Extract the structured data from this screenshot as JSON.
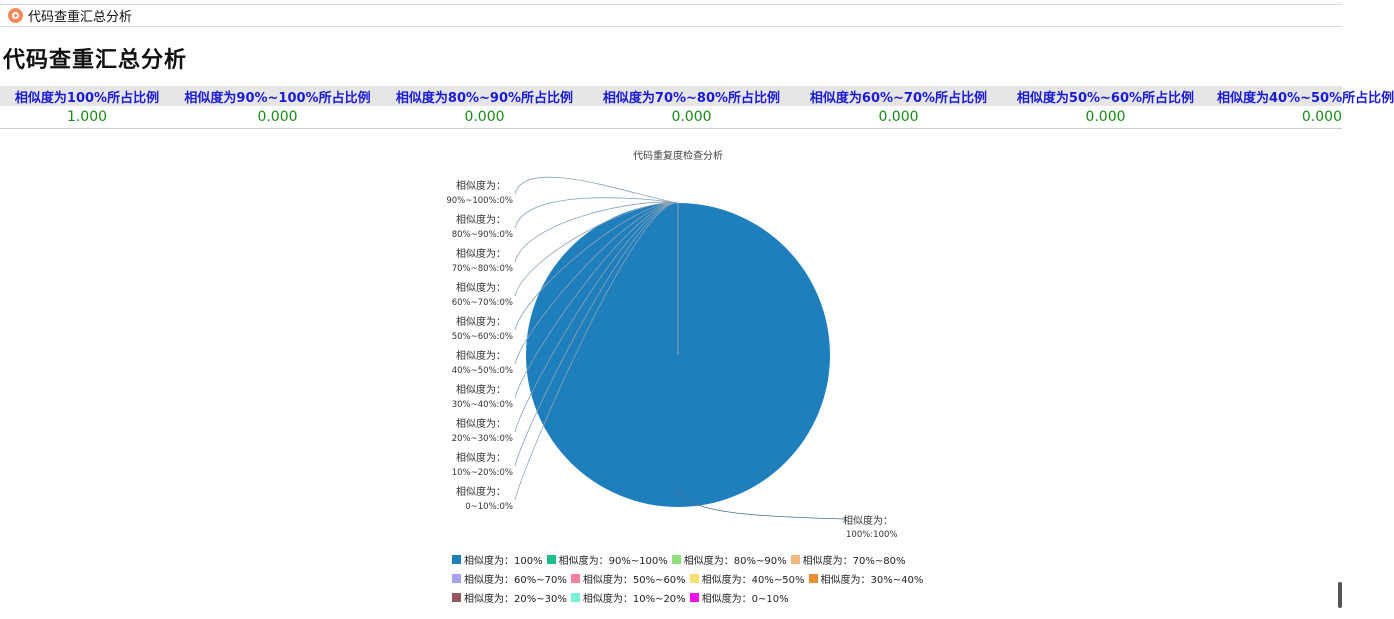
{
  "window": {
    "title": "代码查重汇总分析"
  },
  "page": {
    "title": "代码查重汇总分析"
  },
  "summary_table": {
    "headers": [
      "相似度为100%所占比例",
      "相似度为90%~100%所占比例",
      "相似度为80%~90%所占比例",
      "相似度为70%~80%所占比例",
      "相似度为60%~70%所占比例",
      "相似度为50%~60%所占比例",
      "相似度为40%~50%所占比例"
    ],
    "values": [
      "1.000",
      "0.000",
      "0.000",
      "0.000",
      "0.000",
      "0.000",
      "0.000"
    ]
  },
  "chart_data": {
    "type": "pie",
    "title": "代码重复度检查分析",
    "categories": [
      "相似度为：100%",
      "相似度为：90%~100%",
      "相似度为：80%~90%",
      "相似度为：70%~80%",
      "相似度为：60%~70%",
      "相似度为：50%~60%",
      "相似度为：40%~50%",
      "相似度为：30%~40%",
      "相似度为：20%~30%",
      "相似度为：10%~20%",
      "相似度为：0~10%"
    ],
    "values": [
      1,
      0,
      0,
      0,
      0,
      0,
      0,
      0,
      0,
      0,
      0
    ],
    "slice_labels": [
      [
        "相似度为：",
        "100%:100%"
      ],
      [
        "相似度为：",
        "90%~100%:0%"
      ],
      [
        "相似度为：",
        "80%~90%:0%"
      ],
      [
        "相似度为：",
        "70%~80%:0%"
      ],
      [
        "相似度为：",
        "60%~70%:0%"
      ],
      [
        "相似度为：",
        "50%~60%:0%"
      ],
      [
        "相似度为：",
        "40%~50%:0%"
      ],
      [
        "相似度为：",
        "30%~40%:0%"
      ],
      [
        "相似度为：",
        "20%~30%:0%"
      ],
      [
        "相似度为：",
        "10%~20%:0%"
      ],
      [
        "相似度为：",
        "0~10%:0%"
      ]
    ],
    "legend": [
      "相似度为：100%",
      "相似度为：90%~100%",
      "相似度为：80%~90%",
      "相似度为：70%~80%",
      "相似度为：60%~70%",
      "相似度为：50%~60%",
      "相似度为：40%~50%",
      "相似度为：30%~40%",
      "相似度为：20%~30%",
      "相似度为：10%~20%",
      "相似度为：0~10%"
    ],
    "colors": [
      "#1f7fbd",
      "#1fbc8c",
      "#8ee07c",
      "#f1b77c",
      "#a3a3ef",
      "#f5819c",
      "#f7e072",
      "#ec8d2e",
      "#93595e",
      "#7ef0d2",
      "#f20ef0"
    ],
    "legend_placement": "bottom"
  }
}
